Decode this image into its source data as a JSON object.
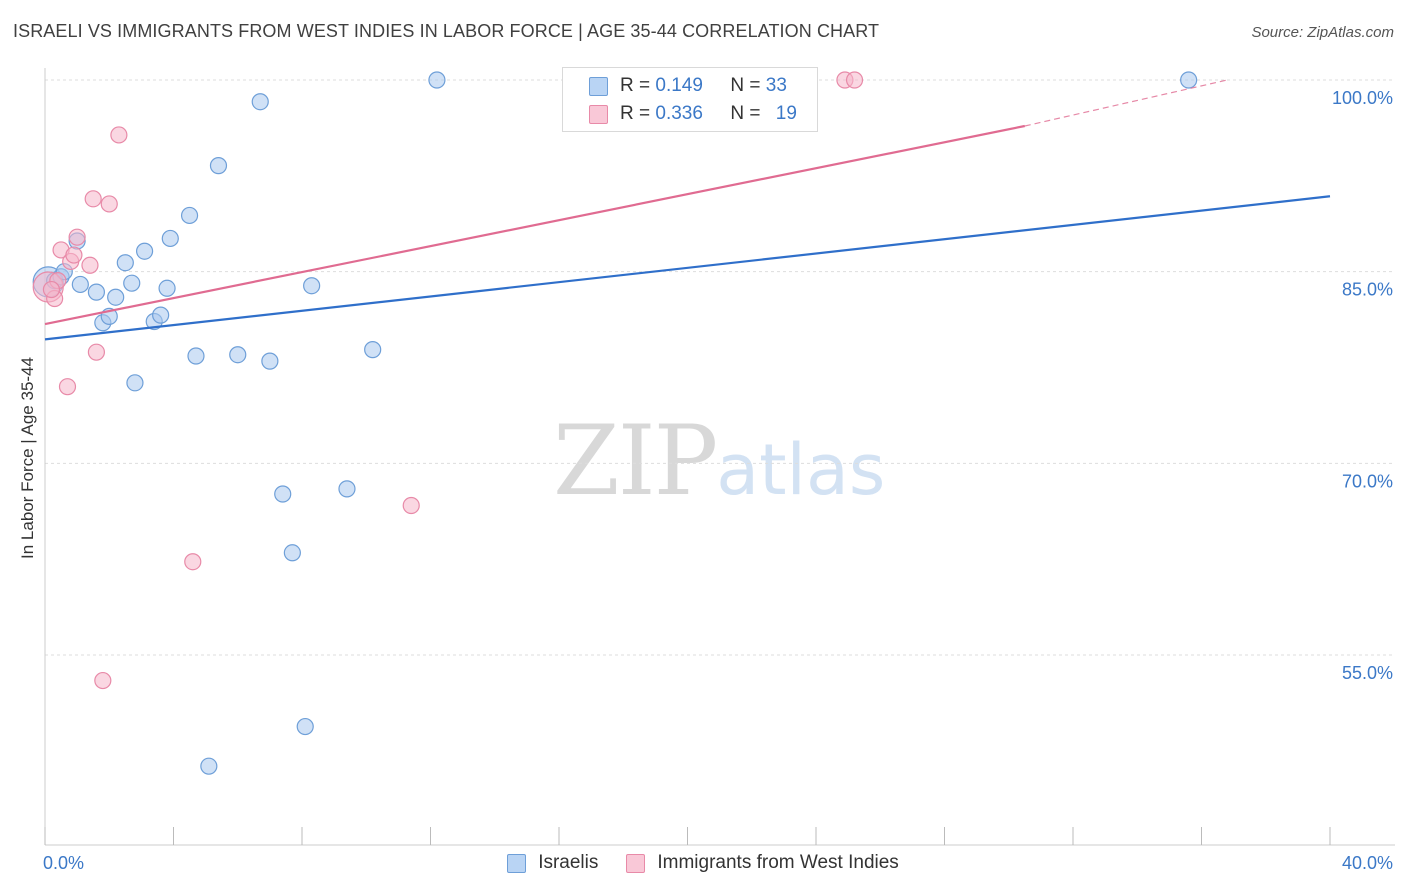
{
  "title": "ISRAELI VS IMMIGRANTS FROM WEST INDIES IN LABOR FORCE | AGE 35-44 CORRELATION CHART",
  "source": "Source: ZipAtlas.com",
  "watermark": {
    "zip": "ZIP",
    "atlas": "atlas"
  },
  "legend_top": [
    {
      "r_label": "R = ",
      "r_value": "0.149",
      "n_label": "N = ",
      "n_value": "33"
    },
    {
      "r_label": "R = ",
      "r_value": "0.336",
      "n_label": "N = ",
      "n_value": "19"
    }
  ],
  "legend_bottom": [
    "Israelis",
    "Immigrants from West Indies"
  ],
  "colors": {
    "israelis_fill": "#a9c8ef",
    "israelis_stroke": "#6e9fd8",
    "israelis_line": "#2f6fca",
    "westindies_fill": "#f6b6cb",
    "westindies_stroke": "#e88aa8",
    "westindies_line": "#e06b91",
    "axis_text": "#3b78c7",
    "grid": "#dddddd"
  },
  "chart_data": {
    "type": "scatter",
    "title": "ISRAELI VS IMMIGRANTS FROM WEST INDIES IN LABOR FORCE | AGE 35-44 CORRELATION CHART",
    "xlabel": "",
    "ylabel": "In Labor Force | Age 35-44",
    "xlim": [
      0,
      40
    ],
    "ylim": [
      40,
      102
    ],
    "x_tick_labels": [
      "0.0%",
      "40.0%"
    ],
    "y_ticks": [
      55,
      70,
      85,
      100
    ],
    "y_tick_labels": [
      "55.0%",
      "70.0%",
      "85.0%",
      "100.0%"
    ],
    "series": [
      {
        "name": "Israelis",
        "R": 0.149,
        "N": 33,
        "trend": {
          "x": [
            0,
            40
          ],
          "y": [
            79.7,
            90.9
          ]
        },
        "points": [
          {
            "x": 0.1,
            "y": 84.2,
            "big": true
          },
          {
            "x": 0.3,
            "y": 84.3
          },
          {
            "x": 0.5,
            "y": 84.6
          },
          {
            "x": 0.6,
            "y": 85.0
          },
          {
            "x": 1.0,
            "y": 87.4
          },
          {
            "x": 1.1,
            "y": 84.0
          },
          {
            "x": 1.6,
            "y": 83.4
          },
          {
            "x": 1.8,
            "y": 81.0
          },
          {
            "x": 2.0,
            "y": 81.5
          },
          {
            "x": 2.2,
            "y": 83.0
          },
          {
            "x": 2.5,
            "y": 85.7
          },
          {
            "x": 2.7,
            "y": 84.1
          },
          {
            "x": 2.8,
            "y": 76.3
          },
          {
            "x": 3.1,
            "y": 86.6
          },
          {
            "x": 3.4,
            "y": 81.1
          },
          {
            "x": 3.6,
            "y": 81.6
          },
          {
            "x": 3.8,
            "y": 83.7
          },
          {
            "x": 3.9,
            "y": 87.6
          },
          {
            "x": 4.5,
            "y": 89.4
          },
          {
            "x": 4.7,
            "y": 78.4
          },
          {
            "x": 5.4,
            "y": 93.3
          },
          {
            "x": 6.0,
            "y": 78.5
          },
          {
            "x": 6.7,
            "y": 98.3
          },
          {
            "x": 7.0,
            "y": 78.0
          },
          {
            "x": 7.4,
            "y": 67.6
          },
          {
            "x": 7.7,
            "y": 63.0
          },
          {
            "x": 8.1,
            "y": 49.4
          },
          {
            "x": 8.3,
            "y": 83.9
          },
          {
            "x": 9.4,
            "y": 68.0
          },
          {
            "x": 10.2,
            "y": 78.9
          },
          {
            "x": 12.2,
            "y": 100.0
          },
          {
            "x": 35.6,
            "y": 100.0
          },
          {
            "x": 5.1,
            "y": 46.3
          }
        ]
      },
      {
        "name": "Immigrants from West Indies",
        "R": 0.336,
        "N": 19,
        "trend": {
          "x": [
            0,
            30.5
          ],
          "y": [
            80.9,
            96.4
          ]
        },
        "trend_dashed": {
          "x": [
            30.5,
            36.8
          ],
          "y": [
            96.4,
            100.0
          ]
        },
        "points": [
          {
            "x": 0.1,
            "y": 83.8,
            "big": true
          },
          {
            "x": 0.3,
            "y": 82.9
          },
          {
            "x": 0.5,
            "y": 86.7
          },
          {
            "x": 0.7,
            "y": 76.0
          },
          {
            "x": 0.8,
            "y": 85.8
          },
          {
            "x": 0.9,
            "y": 86.3
          },
          {
            "x": 1.0,
            "y": 87.7
          },
          {
            "x": 1.4,
            "y": 85.5
          },
          {
            "x": 1.5,
            "y": 90.7
          },
          {
            "x": 1.6,
            "y": 78.7
          },
          {
            "x": 1.8,
            "y": 53.0
          },
          {
            "x": 2.0,
            "y": 90.3
          },
          {
            "x": 2.3,
            "y": 95.7
          },
          {
            "x": 4.6,
            "y": 62.3
          },
          {
            "x": 11.4,
            "y": 66.7
          },
          {
            "x": 24.9,
            "y": 100.0
          },
          {
            "x": 25.2,
            "y": 100.0
          },
          {
            "x": 0.4,
            "y": 84.3
          },
          {
            "x": 0.2,
            "y": 83.6
          }
        ]
      }
    ]
  }
}
